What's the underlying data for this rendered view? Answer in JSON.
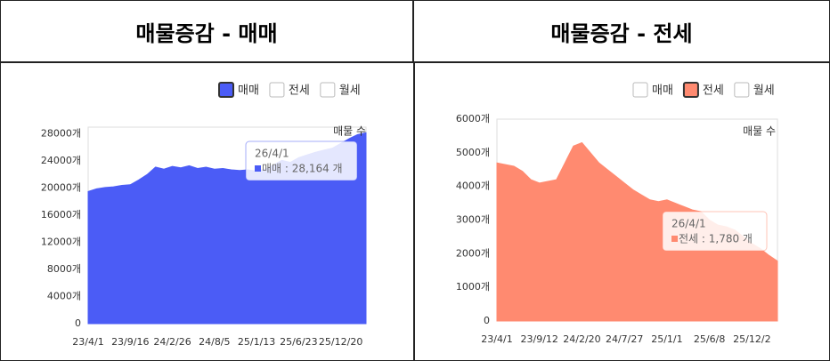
{
  "chart_data": [
    {
      "type": "area",
      "title": "매물증감 - 매매",
      "legend": [
        "매매",
        "전세",
        "월세"
      ],
      "active_index": 0,
      "annotation": "매물 수",
      "categories": [
        "23/4/1",
        null,
        null,
        null,
        null,
        "23/9/16",
        null,
        null,
        null,
        null,
        "24/2/26",
        null,
        null,
        null,
        null,
        "24/8/5",
        null,
        null,
        null,
        null,
        "25/1/13",
        null,
        null,
        null,
        null,
        "25/6/23",
        null,
        null,
        null,
        null,
        "25/12/20",
        null,
        null,
        null
      ],
      "series": [
        {
          "color": "#4b5cf6",
          "values": [
            19500,
            19900,
            20100,
            20200,
            20400,
            20500,
            21200,
            22000,
            23100,
            22800,
            23200,
            23000,
            23300,
            22900,
            23100,
            22800,
            22900,
            22700,
            22600,
            22700,
            22500,
            22800,
            23400,
            24100,
            23800,
            24500,
            24900,
            25300,
            25600,
            25900,
            26600,
            27300,
            27900,
            28164
          ]
        }
      ],
      "ylim": [
        0,
        29000
      ],
      "yticks": [
        {
          "value": 0,
          "label": "0"
        },
        {
          "value": 4000,
          "label": "4000개"
        },
        {
          "value": 8000,
          "label": "8000개"
        },
        {
          "value": 12000,
          "label": "12000개"
        },
        {
          "value": 16000,
          "label": "16000개"
        },
        {
          "value": 20000,
          "label": "20000개"
        },
        {
          "value": 24000,
          "label": "24000개"
        },
        {
          "value": 28000,
          "label": "28000개"
        }
      ],
      "tooltip": {
        "x": "26/4/1",
        "text": "매매 : 28,164 개"
      }
    },
    {
      "type": "area",
      "title": "매물증감 - 전세",
      "legend": [
        "매매",
        "전세",
        "월세"
      ],
      "active_index": 1,
      "annotation": "매물 수",
      "categories": [
        "23/4/1",
        null,
        null,
        null,
        null,
        "23/9/12",
        null,
        null,
        null,
        null,
        "24/2/20",
        null,
        null,
        null,
        null,
        "24/7/27",
        null,
        null,
        null,
        null,
        "25/1/1",
        null,
        null,
        null,
        null,
        "25/6/8",
        null,
        null,
        null,
        null,
        "25/12/2",
        null,
        null,
        null
      ],
      "series": [
        {
          "color": "#ff8a70",
          "values": [
            4700,
            4650,
            4600,
            4450,
            4200,
            4100,
            4150,
            4200,
            4700,
            5200,
            5300,
            5000,
            4700,
            4500,
            4300,
            4100,
            3900,
            3750,
            3600,
            3550,
            3600,
            3500,
            3400,
            3300,
            3250,
            3000,
            2850,
            2800,
            2700,
            2500,
            2300,
            2150,
            1950,
            1780
          ]
        }
      ],
      "ylim": [
        0,
        6000
      ],
      "yticks": [
        {
          "value": 0,
          "label": "0"
        },
        {
          "value": 1000,
          "label": "1000개"
        },
        {
          "value": 2000,
          "label": "2000개"
        },
        {
          "value": 3000,
          "label": "3000개"
        },
        {
          "value": 4000,
          "label": "4000개"
        },
        {
          "value": 5000,
          "label": "5000개"
        },
        {
          "value": 6000,
          "label": "6000개"
        }
      ],
      "tooltip": {
        "x": "26/4/1",
        "text": "전세 : 1,780 개"
      }
    }
  ]
}
